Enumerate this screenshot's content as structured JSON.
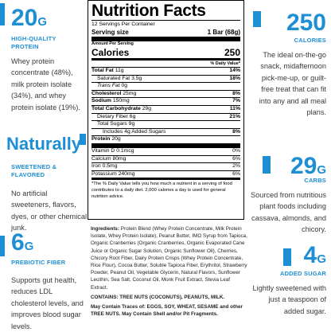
{
  "left": [
    {
      "value": "20",
      "unit": "G",
      "caption": "HIGH-QUALITY PROTEIN",
      "text": "Whey protein concentrate (48%), milk protein isolate (34%), and whey protein isolate (19%)."
    },
    {
      "value": "Naturally",
      "caption": "SWEETENED & FLAVORED",
      "text": "No artificial sweeteners, flavors, dyes, or other chemical junk."
    },
    {
      "value": "6",
      "unit": "G",
      "caption": "PREBIOTIC FIBER",
      "text": "Supports gut health, reduces LDL cholesterol levels, and improves blood sugar levels."
    }
  ],
  "right": [
    {
      "value": "250",
      "caption": "CALORIES",
      "text": "The ideal on-the-go snack, midafternoon pick-me-up, or guilt-free treat that can fit into any and all meal plans."
    },
    {
      "value": "29",
      "unit": "G",
      "caption": "CARBS",
      "text": "Sourced from nutritious plant foods including cassava, almonds, and chicory."
    },
    {
      "value": "4",
      "unit": "G",
      "caption": "ADDED SUGAR",
      "text": "Lightly sweetened with just a teaspoon of added sugar."
    }
  ],
  "nutrition": {
    "title": "Nutrition Facts",
    "servings": "12 Servings Per Container",
    "serving_size_label": "Serving size",
    "serving_size": "1 Bar (68g)",
    "amount_per_serving": "Amount Per Serving",
    "calories_label": "Calories",
    "calories": "250",
    "dv_header": "% Daily Value*",
    "rows": [
      {
        "name": "Total Fat",
        "amount": "11g",
        "dv": "14%",
        "bold": true,
        "indent": 0
      },
      {
        "name": "Saturated Fat",
        "amount": "3.5g",
        "dv": "18%",
        "bold": false,
        "indent": 1
      },
      {
        "name": "Trans Fat",
        "amount": "0g",
        "bold": false,
        "indent": 1
      },
      {
        "name": "Cholesterol",
        "amount": "25mg",
        "dv": "8%",
        "bold": true,
        "indent": 0
      },
      {
        "name": "Sodium",
        "amount": "150mg",
        "dv": "7%",
        "bold": true,
        "indent": 0
      },
      {
        "name": "Total Carbohydrate",
        "amount": "29g",
        "dv": "11%",
        "bold": true,
        "indent": 0
      },
      {
        "name": "Dietary Fiber",
        "amount": "6g",
        "dv": "21%",
        "bold": false,
        "indent": 1
      },
      {
        "name": "Total Sugars",
        "amount": "9g",
        "bold": false,
        "indent": 1
      },
      {
        "name": "Includes 4g Added Sugars",
        "dv": "8%",
        "bold": false,
        "indent": 2
      },
      {
        "name": "Protein",
        "amount": "20g",
        "bold": true,
        "indent": 0
      }
    ],
    "vitamins": [
      {
        "name": "Vitamin D 0.1mcg",
        "dv": "0%"
      },
      {
        "name": "Calcium 80mg",
        "dv": "6%"
      },
      {
        "name": "Iron 0.5mg",
        "dv": "2%"
      },
      {
        "name": "Potassium 240mg",
        "dv": "6%"
      }
    ],
    "footnote": "*The % Daily Value tells you how much a nutrient in a serving of food contributes to a daily diet. 2,000 calories a day is used for general nutrition advice."
  },
  "ingredients": {
    "label": "Ingredients:",
    "text": "Protein Blend (Whey Protein Concentrate, Milk Protein Isolate, Whey Protein Isolate), Peanut Butter, IMO Syrup from Tapioca, Organic Cranberries (Organic Cranberries, Organic Evaporated Cane Juice or Organic Sugar Solution, Organic Sunflower Oil), Cherries, Chicory Root Fiber, Dairy Protein Crisps (Whey Protein Concentrate, Rice Flour), Cocoa Butter, Soluble Tapioca Fiber, Erythritol, Strawberry Powder, Peanut Oil, Vegetable Glycerin, Natural Flavors, Sunflower Lecithin, Sea Salt, Coconut Oil, Monk Fruit Extract, Stevia Leaf Extract.",
    "contains": "CONTAINS: TREE NUTS (COCONUTS), PEANUTS, MILK.",
    "traces": "May Contain Traces of: EGGS, SOY, WHEAT, SESAME and other TREE NUTS. May Contain Shell and/or Pit Fragments."
  }
}
